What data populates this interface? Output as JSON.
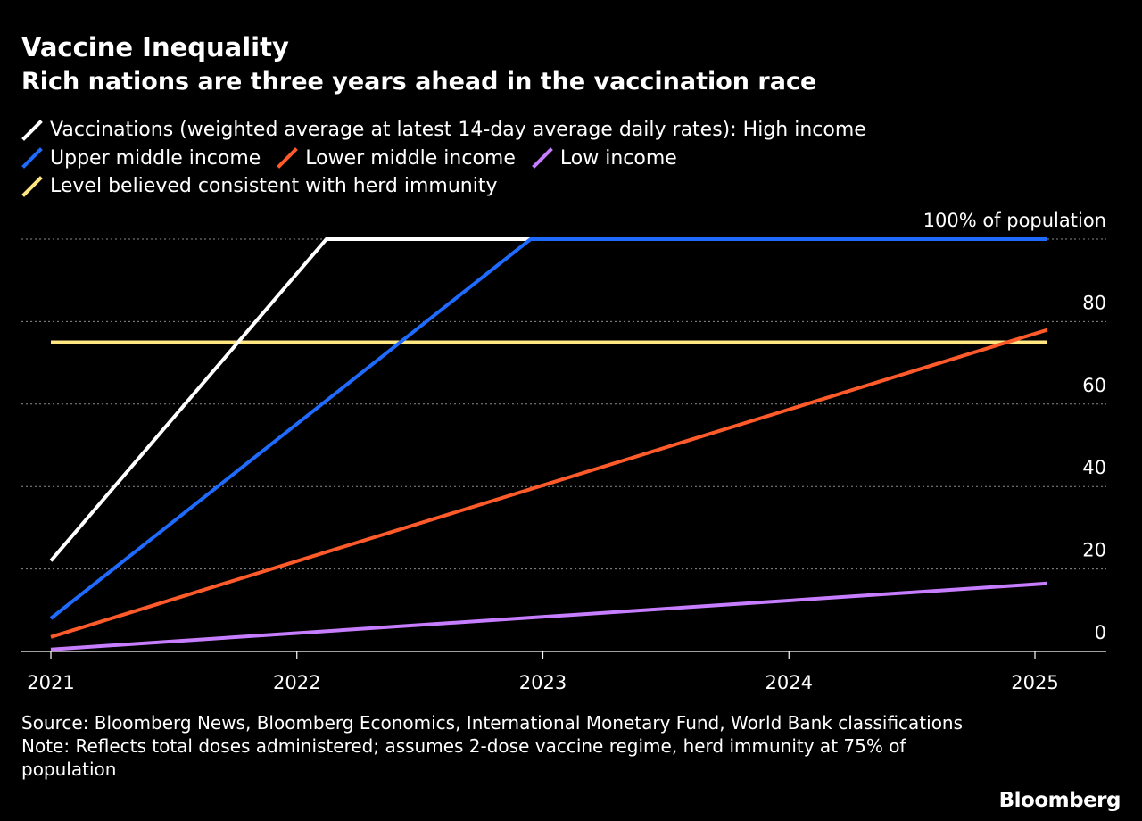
{
  "chart_data": {
    "type": "line",
    "title": "Vaccine Inequality",
    "subtitle": "Rich nations are three years ahead in the vaccination race",
    "xlabel": "",
    "ylabel": "",
    "xlim": [
      2021,
      2025.25
    ],
    "ylim": [
      0,
      100
    ],
    "x_ticks": [
      "2021",
      "2022",
      "2023",
      "2024",
      "2025"
    ],
    "y_ticks": [
      {
        "value": 0,
        "label": "0"
      },
      {
        "value": 20,
        "label": "20"
      },
      {
        "value": 40,
        "label": "40"
      },
      {
        "value": 60,
        "label": "60"
      },
      {
        "value": 80,
        "label": "80"
      },
      {
        "value": 100,
        "label": "100% of population"
      }
    ],
    "grid": true,
    "legend_position": "top-left",
    "series": [
      {
        "name": "Vaccinations (weighted average at latest 14-day average daily rates): High income",
        "color": "#ffffff",
        "points": [
          [
            2021,
            22
          ],
          [
            2022.12,
            100
          ],
          [
            2025.05,
            100
          ]
        ]
      },
      {
        "name": "Upper middle income",
        "color": "#1f6bff",
        "points": [
          [
            2021,
            8
          ],
          [
            2022.95,
            100
          ],
          [
            2025.05,
            100
          ]
        ]
      },
      {
        "name": "Lower middle income",
        "color": "#ff5a2a",
        "points": [
          [
            2021,
            3.5
          ],
          [
            2025.05,
            78
          ]
        ]
      },
      {
        "name": "Low income",
        "color": "#c77dff",
        "points": [
          [
            2021,
            0.5
          ],
          [
            2025.05,
            16.5
          ]
        ]
      },
      {
        "name": "Level believed consistent with herd immunity",
        "color": "#ffe680",
        "points": [
          [
            2021,
            75
          ],
          [
            2025.05,
            75
          ]
        ]
      }
    ]
  },
  "footer": {
    "source": "Source: Bloomberg News, Bloomberg Economics, International Monetary Fund, World Bank classifications",
    "note": "Note: Reflects total doses administered; assumes 2-dose vaccine regime, herd immunity at 75% of population"
  },
  "brand": "Bloomberg"
}
